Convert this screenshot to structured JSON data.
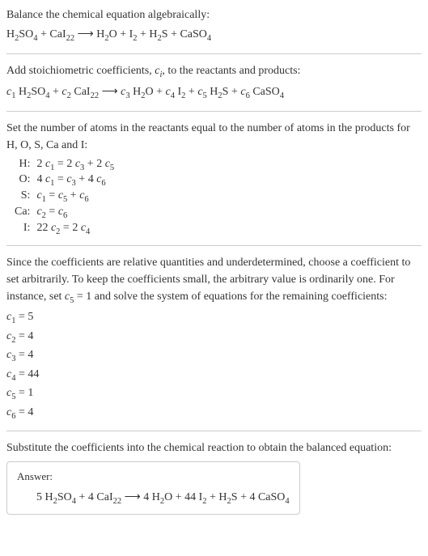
{
  "section1": {
    "line1": "Balance the chemical equation algebraically:",
    "equation": "H<sub>2</sub>SO<sub>4</sub> + CaI<sub>22</sub> <span class='arrow'>⟶</span> H<sub>2</sub>O + I<sub>2</sub> + H<sub>2</sub>S + CaSO<sub>4</sub>"
  },
  "section2": {
    "line1": "Add stoichiometric coefficients, <span class='italic'>c<sub>i</sub></span>, to the reactants and products:",
    "equation": "<span class='italic'>c</span><sub>1</sub> H<sub>2</sub>SO<sub>4</sub> + <span class='italic'>c</span><sub>2</sub> CaI<sub>22</sub> <span class='arrow'>⟶</span> <span class='italic'>c</span><sub>3</sub> H<sub>2</sub>O + <span class='italic'>c</span><sub>4</sub> I<sub>2</sub> + <span class='italic'>c</span><sub>5</sub> H<sub>2</sub>S + <span class='italic'>c</span><sub>6</sub> CaSO<sub>4</sub>"
  },
  "section3": {
    "line1": "Set the number of atoms in the reactants equal to the number of atoms in the products for H, O, S, Ca and I:",
    "rows": [
      {
        "label": "H:",
        "eq": "2 <span class='italic'>c</span><sub>1</sub> = 2 <span class='italic'>c</span><sub>3</sub> + 2 <span class='italic'>c</span><sub>5</sub>"
      },
      {
        "label": "O:",
        "eq": "4 <span class='italic'>c</span><sub>1</sub> = <span class='italic'>c</span><sub>3</sub> + 4 <span class='italic'>c</span><sub>6</sub>"
      },
      {
        "label": "S:",
        "eq": "<span class='italic'>c</span><sub>1</sub> = <span class='italic'>c</span><sub>5</sub> + <span class='italic'>c</span><sub>6</sub>"
      },
      {
        "label": "Ca:",
        "eq": "<span class='italic'>c</span><sub>2</sub> = <span class='italic'>c</span><sub>6</sub>"
      },
      {
        "label": "I:",
        "eq": "22 <span class='italic'>c</span><sub>2</sub> = 2 <span class='italic'>c</span><sub>4</sub>"
      }
    ]
  },
  "section4": {
    "line1": "Since the coefficients are relative quantities and underdetermined, choose a coefficient to set arbitrarily. To keep the coefficients small, the arbitrary value is ordinarily one. For instance, set <span class='italic'>c</span><sub>5</sub> = 1 and solve the system of equations for the remaining coefficients:",
    "coefs": [
      "<span class='italic'>c</span><sub>1</sub> = 5",
      "<span class='italic'>c</span><sub>2</sub> = 4",
      "<span class='italic'>c</span><sub>3</sub> = 4",
      "<span class='italic'>c</span><sub>4</sub> = 44",
      "<span class='italic'>c</span><sub>5</sub> = 1",
      "<span class='italic'>c</span><sub>6</sub> = 4"
    ]
  },
  "section5": {
    "line1": "Substitute the coefficients into the chemical reaction to obtain the balanced equation:",
    "answerLabel": "Answer:",
    "answerEq": "5 H<sub>2</sub>SO<sub>4</sub> + 4 CaI<sub>22</sub> <span class='arrow'>⟶</span> 4 H<sub>2</sub>O + 44 I<sub>2</sub> + H<sub>2</sub>S + 4 CaSO<sub>4</sub>"
  }
}
